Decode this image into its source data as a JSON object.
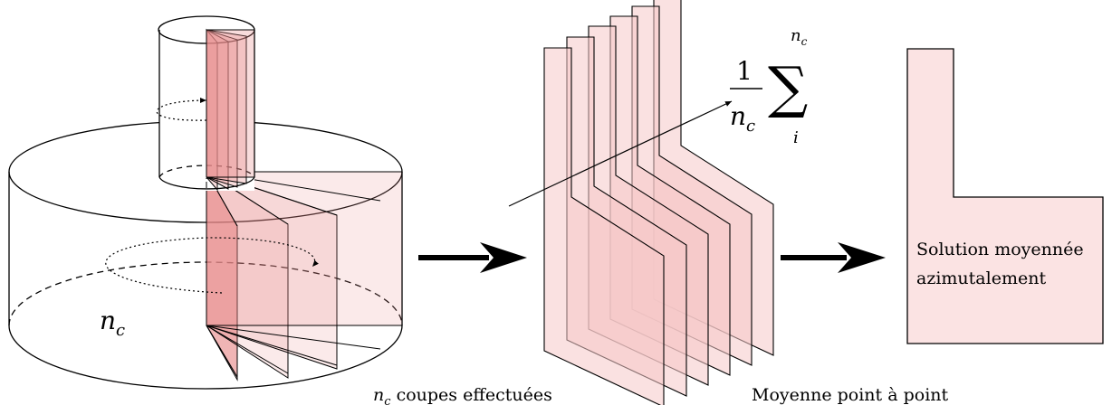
{
  "math": {
    "n": "n",
    "c": "c",
    "one": "1",
    "sigma": "∑",
    "i": "i"
  },
  "labels": {
    "cuts_text": " coupes effectuées",
    "average_text": "Moyenne point à point",
    "solution_line1": "Solution moyennée",
    "solution_line2": "azimutalement"
  },
  "colors": {
    "cut_fill": "#e88a8a",
    "slice_fill": "#f6c9c9",
    "result_fill": "#fbe3e3",
    "stroke": "#000000"
  }
}
